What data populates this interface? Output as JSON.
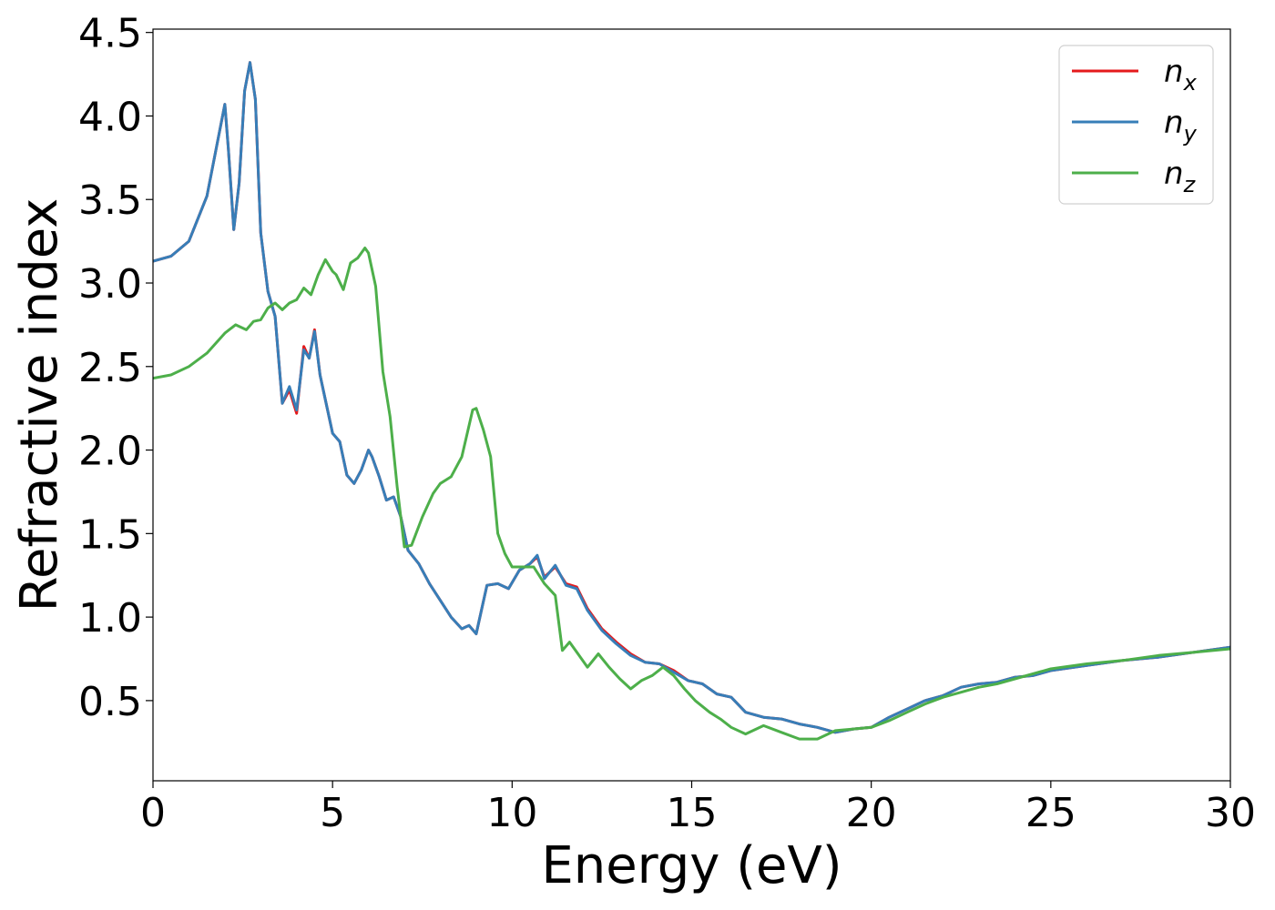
{
  "chart_data": {
    "type": "line",
    "title": "",
    "xlabel": "Energy (eV)",
    "ylabel": "Refractive index",
    "xlim": [
      0,
      30
    ],
    "ylim": [
      0.02,
      4.52
    ],
    "xticks": [
      0,
      5,
      10,
      15,
      20,
      25,
      30
    ],
    "yticks": [
      0.5,
      1.0,
      1.5,
      2.0,
      2.5,
      3.0,
      3.5,
      4.0,
      4.5
    ],
    "xtick_labels": [
      "0",
      "5",
      "10",
      "15",
      "20",
      "25",
      "30"
    ],
    "ytick_labels": [
      "0.5",
      "1.0",
      "1.5",
      "2.0",
      "2.5",
      "3.0",
      "3.5",
      "4.0",
      "4.5"
    ],
    "grid": false,
    "legend_position": "top-right",
    "series": [
      {
        "name": "n_x",
        "label_base": "n",
        "label_sub": "x",
        "color": "#e41a1c",
        "x": [
          0,
          0.5,
          1.0,
          1.5,
          1.8,
          2.0,
          2.1,
          2.25,
          2.4,
          2.55,
          2.7,
          2.85,
          3.0,
          3.2,
          3.4,
          3.6,
          3.8,
          4.0,
          4.2,
          4.35,
          4.5,
          4.65,
          4.8,
          5.0,
          5.2,
          5.4,
          5.6,
          5.8,
          6.0,
          6.1,
          6.3,
          6.5,
          6.7,
          6.9,
          7.1,
          7.4,
          7.7,
          8.0,
          8.3,
          8.6,
          8.8,
          9.0,
          9.3,
          9.6,
          9.9,
          10.2,
          10.5,
          10.7,
          10.9,
          11.2,
          11.5,
          11.8,
          12.1,
          12.5,
          12.9,
          13.3,
          13.7,
          14.1,
          14.5,
          14.9,
          15.3,
          15.7,
          16.1,
          16.5,
          17.0,
          17.5,
          18.0,
          18.5,
          19.0,
          19.5,
          20.0,
          20.5,
          21.0,
          21.5,
          22.0,
          22.5,
          23.0,
          23.5,
          24.0,
          24.5,
          25.0,
          26.0,
          27.0,
          28.0,
          29.0,
          30.0
        ],
        "y": [
          3.13,
          3.16,
          3.25,
          3.52,
          3.85,
          4.07,
          3.8,
          3.32,
          3.6,
          4.15,
          4.32,
          4.1,
          3.3,
          2.95,
          2.8,
          2.28,
          2.36,
          2.22,
          2.62,
          2.55,
          2.72,
          2.45,
          2.3,
          2.1,
          2.05,
          1.85,
          1.8,
          1.88,
          2.0,
          1.96,
          1.84,
          1.7,
          1.72,
          1.6,
          1.4,
          1.32,
          1.2,
          1.1,
          1.0,
          0.93,
          0.95,
          0.9,
          1.19,
          1.2,
          1.17,
          1.28,
          1.32,
          1.36,
          1.24,
          1.3,
          1.2,
          1.18,
          1.05,
          0.93,
          0.85,
          0.78,
          0.73,
          0.72,
          0.68,
          0.62,
          0.6,
          0.54,
          0.52,
          0.43,
          0.4,
          0.39,
          0.36,
          0.34,
          0.31,
          0.33,
          0.34,
          0.4,
          0.45,
          0.5,
          0.53,
          0.58,
          0.6,
          0.61,
          0.64,
          0.65,
          0.68,
          0.71,
          0.74,
          0.76,
          0.79,
          0.82
        ]
      },
      {
        "name": "n_y",
        "label_base": "n",
        "label_sub": "y",
        "color": "#377eb8",
        "x": [
          0,
          0.5,
          1.0,
          1.5,
          1.8,
          2.0,
          2.1,
          2.25,
          2.4,
          2.55,
          2.7,
          2.85,
          3.0,
          3.2,
          3.4,
          3.6,
          3.8,
          4.0,
          4.2,
          4.35,
          4.5,
          4.65,
          4.8,
          5.0,
          5.2,
          5.4,
          5.6,
          5.8,
          6.0,
          6.1,
          6.3,
          6.5,
          6.7,
          6.9,
          7.1,
          7.4,
          7.7,
          8.0,
          8.3,
          8.6,
          8.8,
          9.0,
          9.3,
          9.6,
          9.9,
          10.2,
          10.5,
          10.7,
          10.9,
          11.2,
          11.5,
          11.8,
          12.1,
          12.5,
          12.9,
          13.3,
          13.7,
          14.1,
          14.5,
          14.9,
          15.3,
          15.7,
          16.1,
          16.5,
          17.0,
          17.5,
          18.0,
          18.5,
          19.0,
          19.5,
          20.0,
          20.5,
          21.0,
          21.5,
          22.0,
          22.5,
          23.0,
          23.5,
          24.0,
          24.5,
          25.0,
          26.0,
          27.0,
          28.0,
          29.0,
          30.0
        ],
        "y": [
          3.13,
          3.16,
          3.25,
          3.52,
          3.85,
          4.07,
          3.8,
          3.32,
          3.6,
          4.15,
          4.32,
          4.1,
          3.3,
          2.95,
          2.8,
          2.28,
          2.38,
          2.24,
          2.6,
          2.55,
          2.71,
          2.45,
          2.3,
          2.1,
          2.05,
          1.85,
          1.8,
          1.88,
          2.0,
          1.96,
          1.84,
          1.7,
          1.72,
          1.6,
          1.4,
          1.32,
          1.2,
          1.1,
          1.0,
          0.93,
          0.95,
          0.9,
          1.19,
          1.2,
          1.17,
          1.28,
          1.32,
          1.37,
          1.23,
          1.31,
          1.19,
          1.17,
          1.04,
          0.92,
          0.84,
          0.77,
          0.73,
          0.72,
          0.67,
          0.62,
          0.6,
          0.54,
          0.52,
          0.43,
          0.4,
          0.39,
          0.36,
          0.34,
          0.31,
          0.33,
          0.34,
          0.4,
          0.45,
          0.5,
          0.53,
          0.58,
          0.6,
          0.61,
          0.64,
          0.65,
          0.68,
          0.71,
          0.74,
          0.76,
          0.79,
          0.82
        ]
      },
      {
        "name": "n_z",
        "label_base": "n",
        "label_sub": "z",
        "color": "#4daf4a",
        "x": [
          0,
          0.5,
          1.0,
          1.5,
          2.0,
          2.3,
          2.6,
          2.8,
          3.0,
          3.2,
          3.4,
          3.6,
          3.8,
          4.0,
          4.2,
          4.4,
          4.6,
          4.8,
          5.0,
          5.1,
          5.3,
          5.5,
          5.7,
          5.9,
          6.0,
          6.2,
          6.4,
          6.6,
          6.8,
          7.0,
          7.2,
          7.5,
          7.8,
          8.0,
          8.3,
          8.6,
          8.9,
          9.0,
          9.2,
          9.4,
          9.6,
          9.8,
          10.0,
          10.3,
          10.6,
          10.9,
          11.2,
          11.4,
          11.6,
          11.9,
          12.1,
          12.4,
          12.7,
          13.0,
          13.3,
          13.6,
          13.9,
          14.2,
          14.5,
          14.8,
          15.1,
          15.5,
          15.8,
          16.1,
          16.5,
          17.0,
          17.5,
          18.0,
          18.5,
          19.0,
          19.5,
          20.0,
          20.5,
          21.0,
          21.5,
          22.0,
          22.5,
          23.0,
          23.5,
          24.0,
          24.5,
          25.0,
          26.0,
          27.0,
          28.0,
          29.0,
          30.0
        ],
        "y": [
          2.43,
          2.45,
          2.5,
          2.58,
          2.7,
          2.75,
          2.72,
          2.77,
          2.78,
          2.85,
          2.88,
          2.84,
          2.88,
          2.9,
          2.97,
          2.93,
          3.05,
          3.14,
          3.07,
          3.05,
          2.96,
          3.12,
          3.15,
          3.21,
          3.18,
          2.98,
          2.47,
          2.2,
          1.78,
          1.42,
          1.43,
          1.6,
          1.74,
          1.8,
          1.84,
          1.96,
          2.24,
          2.25,
          2.12,
          1.96,
          1.5,
          1.38,
          1.3,
          1.3,
          1.3,
          1.2,
          1.13,
          0.8,
          0.85,
          0.76,
          0.7,
          0.78,
          0.7,
          0.63,
          0.57,
          0.62,
          0.65,
          0.7,
          0.65,
          0.57,
          0.5,
          0.43,
          0.39,
          0.34,
          0.3,
          0.35,
          0.31,
          0.27,
          0.27,
          0.32,
          0.33,
          0.34,
          0.38,
          0.43,
          0.48,
          0.52,
          0.55,
          0.58,
          0.6,
          0.63,
          0.66,
          0.69,
          0.72,
          0.74,
          0.77,
          0.79,
          0.81
        ]
      }
    ]
  }
}
